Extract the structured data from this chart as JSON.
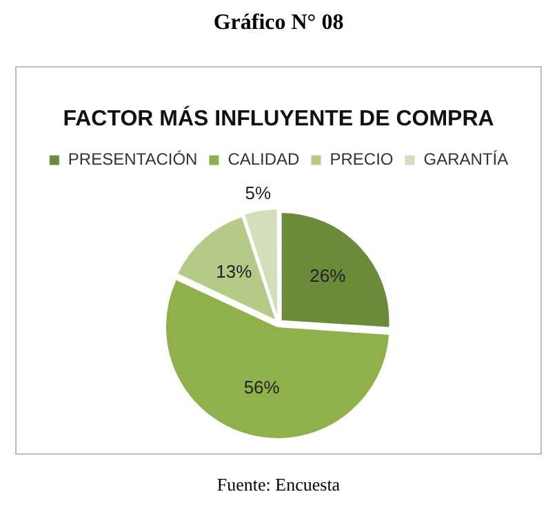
{
  "chart_data": {
    "type": "pie",
    "title": "Gráfico N° 08",
    "subtitle": "FACTOR MÁS INFLUYENTE DE COMPRA",
    "categories": [
      "PRESENTACIÓN",
      "CALIDAD",
      "PRECIO",
      "GARANTÍA"
    ],
    "values": [
      26,
      56,
      13,
      5
    ],
    "colors": [
      "#6b8a3a",
      "#8fb04a",
      "#b3cb86",
      "#d3dfbb"
    ],
    "value_labels": [
      "26%",
      "56%",
      "13%",
      "5%"
    ],
    "legend": "top",
    "annotations": [
      "Fuente: Encuesta"
    ]
  }
}
